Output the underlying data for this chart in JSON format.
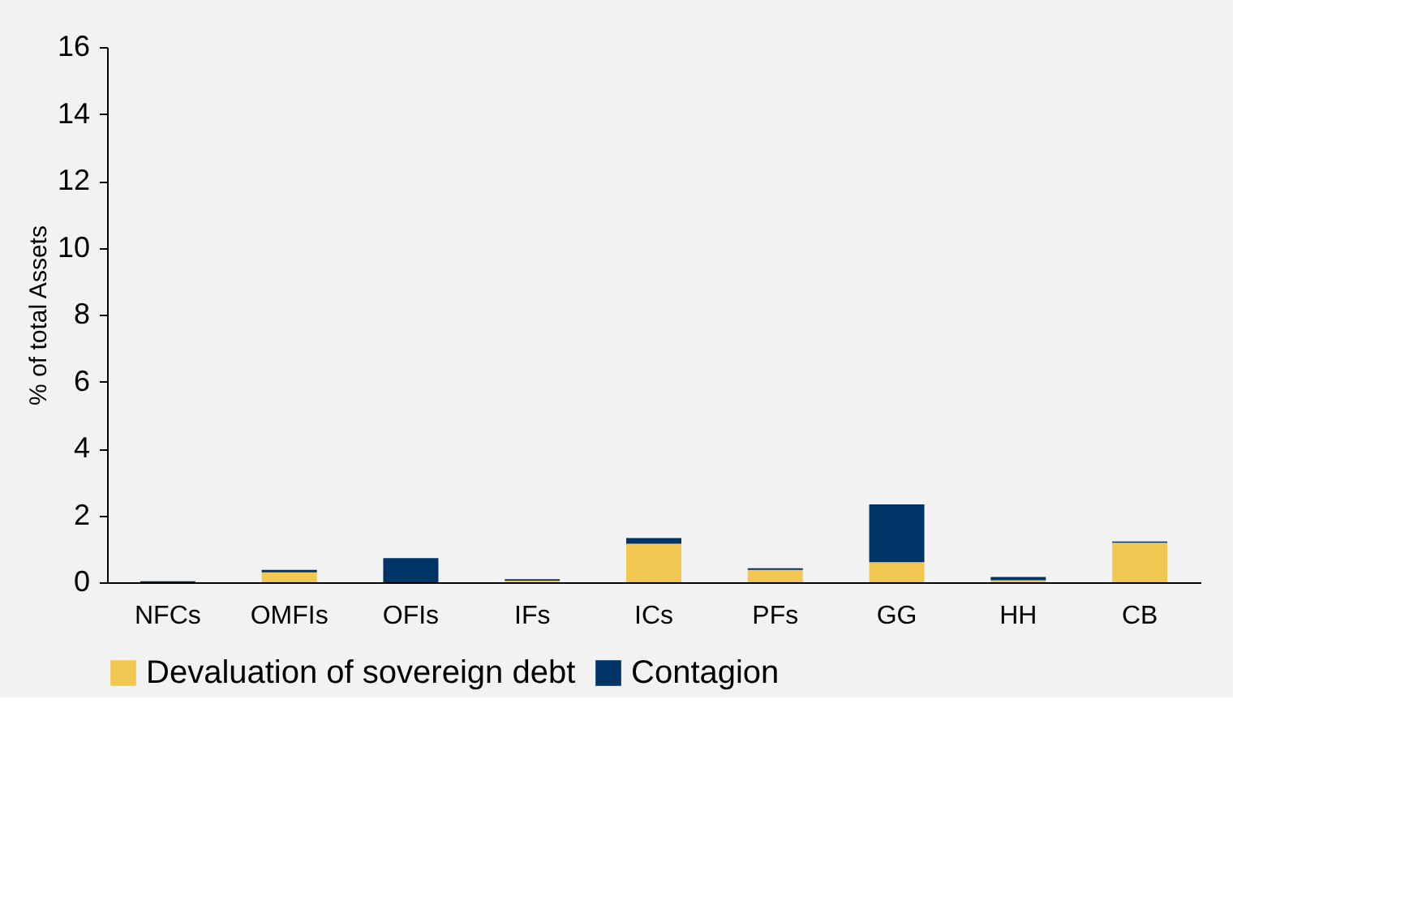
{
  "chart_data": {
    "type": "bar",
    "stacked": true,
    "ylabel": "% of total Assets",
    "categories": [
      "NFCs",
      "OMFIs",
      "OFIs",
      "IFs",
      "ICs",
      "PFs",
      "GG",
      "HH",
      "CB"
    ],
    "series": [
      {
        "name": "Devaluation of sovereign debt",
        "color": "#f2c751",
        "values": [
          0,
          0.3,
          0,
          0.05,
          1.15,
          0.37,
          0.6,
          0.06,
          1.18
        ]
      },
      {
        "name": "Contagion",
        "color": "#003366",
        "values": [
          0.03,
          0.07,
          0.72,
          0.04,
          0.17,
          0.05,
          1.73,
          0.1,
          0.04
        ]
      }
    ],
    "ylim": [
      0,
      16
    ],
    "yticks": [
      0,
      2,
      4,
      6,
      8,
      10,
      12,
      14,
      16
    ],
    "grid": false,
    "legend": "bottom"
  }
}
